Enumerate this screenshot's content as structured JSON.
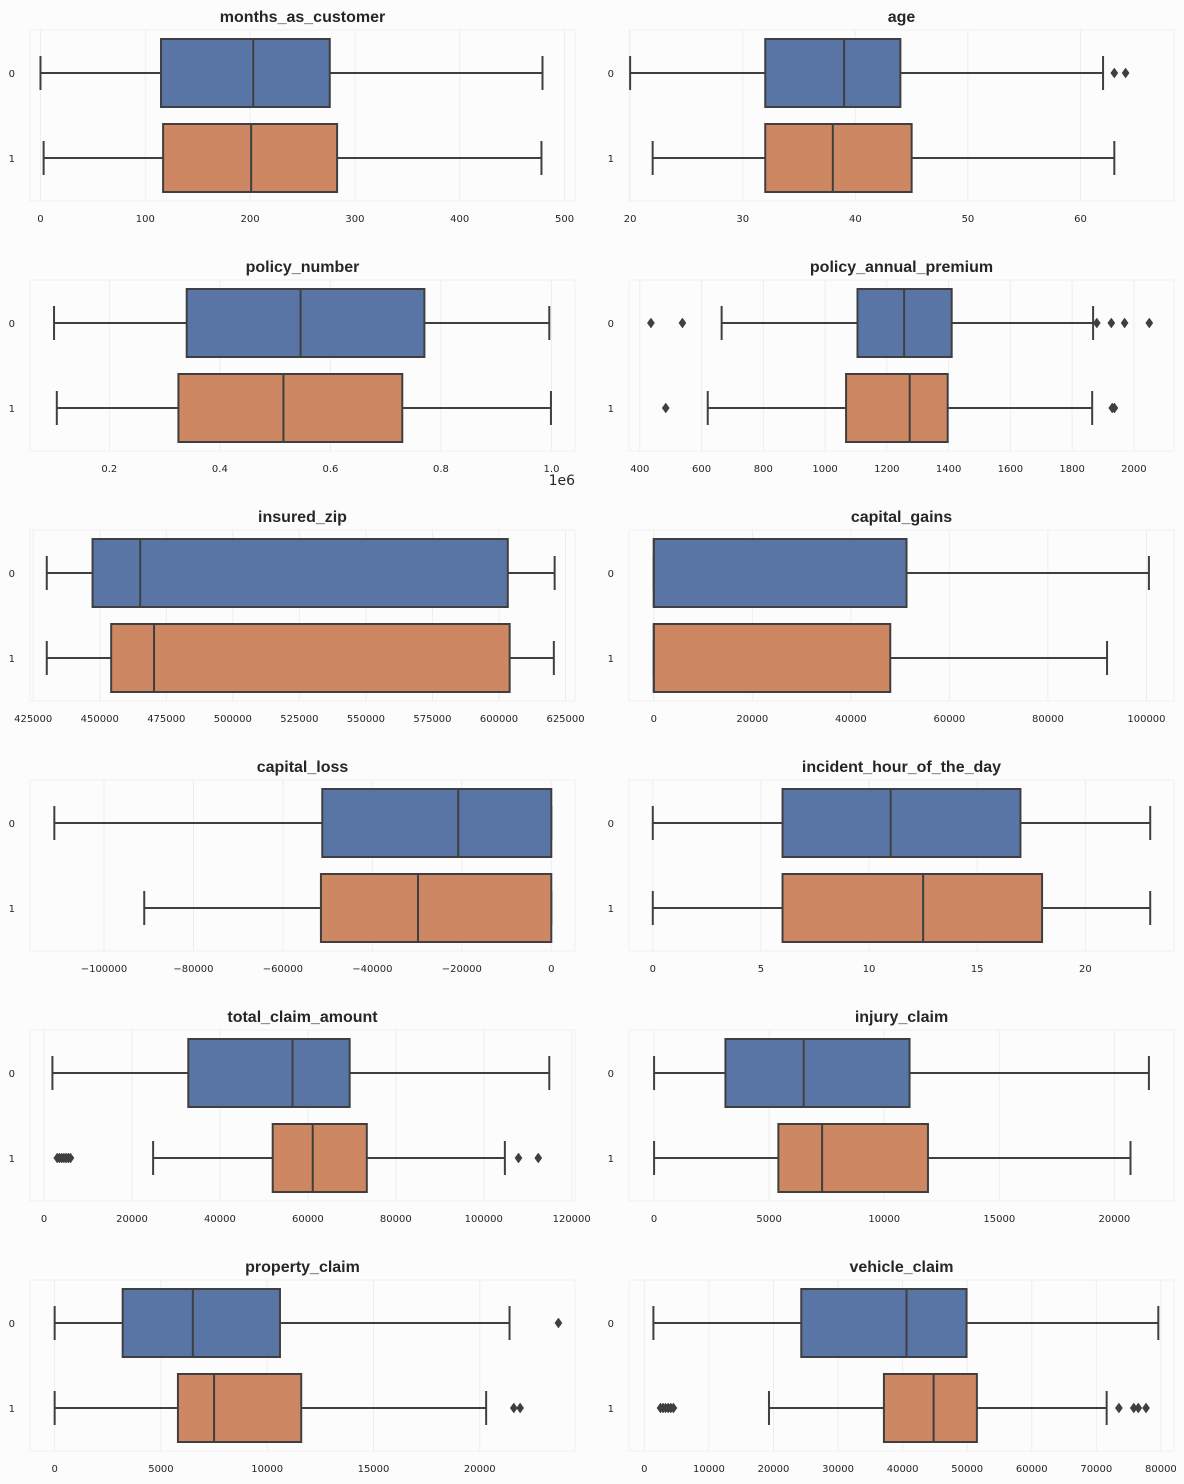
{
  "colors": {
    "class_0": "#5875a6",
    "class_1": "#cd8863",
    "line": "#3f3f3f",
    "grid": "#eeeeee",
    "background": "#fcfcfc"
  },
  "chart_data": [
    {
      "type": "boxplot",
      "title": "months_as_customer",
      "xticks": [
        0,
        100,
        200,
        300,
        400,
        500
      ],
      "xtick_labels": [
        "0",
        "100",
        "200",
        "300",
        "400",
        "500"
      ],
      "xlim": [
        -10,
        510
      ],
      "categories": [
        "0",
        "1"
      ],
      "boxes": [
        {
          "category": "0",
          "whislo": 0,
          "q1": 115,
          "med": 203,
          "q3": 276,
          "whishi": 479,
          "fliers": []
        },
        {
          "category": "1",
          "whislo": 3,
          "q1": 117,
          "med": 201,
          "q3": 283,
          "whishi": 478,
          "fliers": []
        }
      ]
    },
    {
      "type": "boxplot",
      "title": "age",
      "xticks": [
        20,
        30,
        40,
        50,
        60
      ],
      "xtick_labels": [
        "20",
        "30",
        "40",
        "50",
        "60"
      ],
      "xlim": [
        19.9,
        68.3
      ],
      "categories": [
        "0",
        "1"
      ],
      "boxes": [
        {
          "category": "0",
          "whislo": 20,
          "q1": 32,
          "med": 39,
          "q3": 44,
          "whishi": 62,
          "fliers": [
            63,
            64
          ]
        },
        {
          "category": "1",
          "whislo": 22,
          "q1": 32,
          "med": 38,
          "q3": 45,
          "whishi": 63,
          "fliers": []
        }
      ]
    },
    {
      "type": "boxplot",
      "title": "policy_number",
      "xticks": [
        0.2,
        0.4,
        0.6,
        0.8,
        1.0
      ],
      "xtick_labels": [
        "0.2",
        "0.4",
        "0.6",
        "0.8",
        "1.0"
      ],
      "offset_label": "1e6",
      "xlim": [
        0.0565,
        1.0425
      ],
      "categories": [
        "0",
        "1"
      ],
      "boxes": [
        {
          "category": "0",
          "whislo": 0.1,
          "q1": 0.34,
          "med": 0.546,
          "q3": 0.77,
          "whishi": 0.996,
          "fliers": []
        },
        {
          "category": "1",
          "whislo": 0.105,
          "q1": 0.325,
          "med": 0.515,
          "q3": 0.73,
          "whishi": 0.999,
          "fliers": []
        }
      ]
    },
    {
      "type": "boxplot",
      "title": "policy_annual_premium",
      "xticks": [
        400,
        600,
        800,
        1000,
        1200,
        1400,
        1600,
        1800,
        2000
      ],
      "xtick_labels": [
        "400",
        "600",
        "800",
        "1000",
        "1200",
        "1400",
        "1600",
        "1800",
        "2000"
      ],
      "xlim": [
        365,
        2130
      ],
      "categories": [
        "0",
        "1"
      ],
      "boxes": [
        {
          "category": "0",
          "whislo": 665,
          "q1": 1105,
          "med": 1256,
          "q3": 1410,
          "whishi": 1868,
          "fliers": [
            436,
            538,
            1880,
            1927,
            1970,
            2050
          ]
        },
        {
          "category": "1",
          "whislo": 620,
          "q1": 1068,
          "med": 1274,
          "q3": 1397,
          "whishi": 1865,
          "fliers": [
            484,
            1930,
            1937
          ]
        }
      ]
    },
    {
      "type": "boxplot",
      "title": "insured_zip",
      "xticks": [
        425000,
        450000,
        475000,
        500000,
        525000,
        550000,
        575000,
        600000,
        625000
      ],
      "xtick_labels": [
        "425000",
        "450000",
        "475000",
        "500000",
        "525000",
        "550000",
        "575000",
        "600000",
        "625000"
      ],
      "xlim": [
        423800,
        628550
      ],
      "categories": [
        "0",
        "1"
      ],
      "boxes": [
        {
          "category": "0",
          "whislo": 430100,
          "q1": 447300,
          "med": 465200,
          "q3": 603300,
          "whishi": 620900,
          "fliers": []
        },
        {
          "category": "1",
          "whislo": 430100,
          "q1": 454300,
          "med": 470400,
          "q3": 604000,
          "whishi": 620600,
          "fliers": []
        }
      ]
    },
    {
      "type": "boxplot",
      "title": "capital_gains",
      "xticks": [
        0,
        20000,
        40000,
        60000,
        80000,
        100000
      ],
      "xtick_labels": [
        "0",
        "20000",
        "40000",
        "60000",
        "80000",
        "100000"
      ],
      "xlim": [
        -5030,
        105590
      ],
      "categories": [
        "0",
        "1"
      ],
      "boxes": [
        {
          "category": "0",
          "whislo": 0,
          "q1": 0,
          "med": 0,
          "q3": 51300,
          "whishi": 100500,
          "fliers": []
        },
        {
          "category": "1",
          "whislo": 0,
          "q1": 0,
          "med": 0,
          "q3": 48000,
          "whishi": 92000,
          "fliers": []
        }
      ]
    },
    {
      "type": "boxplot",
      "title": "capital_loss",
      "xticks": [
        -100000,
        -80000,
        -60000,
        -40000,
        -20000,
        0
      ],
      "xtick_labels": [
        "−100000",
        "−80000",
        "−60000",
        "−40000",
        "−20000",
        "0"
      ],
      "xlim": [
        -116540,
        5300
      ],
      "categories": [
        "0",
        "1"
      ],
      "boxes": [
        {
          "category": "0",
          "whislo": -111100,
          "q1": -51200,
          "med": -20800,
          "q3": 0,
          "whishi": 0,
          "fliers": []
        },
        {
          "category": "1",
          "whislo": -91000,
          "q1": -51500,
          "med": -29800,
          "q3": 0,
          "whishi": 0,
          "fliers": []
        }
      ]
    },
    {
      "type": "boxplot",
      "title": "incident_hour_of_the_day",
      "xticks": [
        0,
        5,
        10,
        15,
        20
      ],
      "xtick_labels": [
        "0",
        "5",
        "10",
        "15",
        "20"
      ],
      "xlim": [
        -1.1,
        24.1
      ],
      "categories": [
        "0",
        "1"
      ],
      "boxes": [
        {
          "category": "0",
          "whislo": 0,
          "q1": 6,
          "med": 11,
          "q3": 17,
          "whishi": 23,
          "fliers": []
        },
        {
          "category": "1",
          "whislo": 0,
          "q1": 6,
          "med": 12.5,
          "q3": 18,
          "whishi": 23,
          "fliers": []
        }
      ]
    },
    {
      "type": "boxplot",
      "title": "total_claim_amount",
      "xticks": [
        0,
        20000,
        40000,
        60000,
        80000,
        100000,
        120000
      ],
      "xtick_labels": [
        "0",
        "20000",
        "40000",
        "60000",
        "80000",
        "100000",
        "120000"
      ],
      "xlim": [
        -3200,
        120750
      ],
      "categories": [
        "0",
        "1"
      ],
      "boxes": [
        {
          "category": "0",
          "whislo": 1900,
          "q1": 32800,
          "med": 56500,
          "q3": 69500,
          "whishi": 114900,
          "fliers": []
        },
        {
          "category": "1",
          "whislo": 24800,
          "q1": 52000,
          "med": 61100,
          "q3": 73400,
          "whishi": 104800,
          "fliers": [
            3000,
            3500,
            4000,
            4500,
            5000,
            5500,
            6000,
            107900,
            112400
          ]
        }
      ]
    },
    {
      "type": "boxplot",
      "title": "injury_claim",
      "xticks": [
        0,
        5000,
        10000,
        15000,
        20000
      ],
      "xtick_labels": [
        "0",
        "5000",
        "10000",
        "15000",
        "20000"
      ],
      "xlim": [
        -1090,
        22590
      ],
      "categories": [
        "0",
        "1"
      ],
      "boxes": [
        {
          "category": "0",
          "whislo": 0,
          "q1": 3100,
          "med": 6500,
          "q3": 11100,
          "whishi": 21500,
          "fliers": []
        },
        {
          "category": "1",
          "whislo": 0,
          "q1": 5400,
          "med": 7300,
          "q3": 11900,
          "whishi": 20700,
          "fliers": []
        }
      ]
    },
    {
      "type": "boxplot",
      "title": "property_claim",
      "xticks": [
        0,
        5000,
        10000,
        15000,
        20000
      ],
      "xtick_labels": [
        "0",
        "5000",
        "10000",
        "15000",
        "20000"
      ],
      "xlim": [
        -1160,
        24480
      ],
      "categories": [
        "0",
        "1"
      ],
      "boxes": [
        {
          "category": "0",
          "whislo": 0,
          "q1": 3200,
          "med": 6500,
          "q3": 10600,
          "whishi": 21400,
          "fliers": [
            23700
          ]
        },
        {
          "category": "1",
          "whislo": 0,
          "q1": 5800,
          "med": 7500,
          "q3": 11600,
          "whishi": 20300,
          "fliers": [
            21600,
            21900
          ]
        }
      ]
    },
    {
      "type": "boxplot",
      "title": "vehicle_claim",
      "xticks": [
        0,
        10000,
        20000,
        30000,
        40000,
        50000,
        60000,
        70000,
        80000
      ],
      "xtick_labels": [
        "0",
        "10000",
        "20000",
        "30000",
        "40000",
        "50000",
        "60000",
        "70000",
        "80000"
      ],
      "xlim": [
        -2380,
        82030
      ],
      "categories": [
        "0",
        "1"
      ],
      "boxes": [
        {
          "category": "0",
          "whislo": 1400,
          "q1": 24300,
          "med": 40600,
          "q3": 49900,
          "whishi": 79600,
          "fliers": []
        },
        {
          "category": "1",
          "whislo": 19300,
          "q1": 37100,
          "med": 44800,
          "q3": 51500,
          "whishi": 71600,
          "fliers": [
            2500,
            2900,
            3300,
            3700,
            4100,
            4500,
            73500,
            75800,
            76500,
            77700
          ]
        }
      ]
    }
  ]
}
